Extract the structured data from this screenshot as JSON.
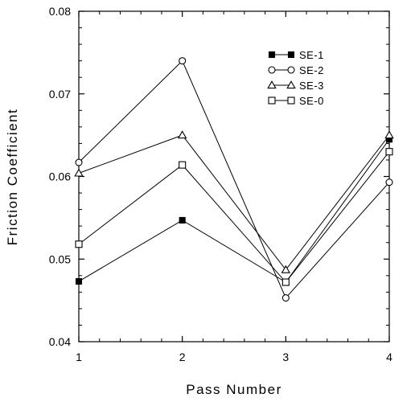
{
  "chart_data": {
    "type": "line",
    "title": "",
    "xlabel": "Pass Number",
    "ylabel": "Friction Coefficient",
    "x": [
      1,
      2,
      3,
      4
    ],
    "xlim": [
      1,
      4
    ],
    "ylim": [
      0.04,
      0.08
    ],
    "xticks": [
      "1",
      "2",
      "3",
      "4"
    ],
    "yticks": [
      "0.04",
      "0.05",
      "0.06",
      "0.07",
      "0.08"
    ],
    "grid": false,
    "legend_position": "top-right",
    "series": [
      {
        "name": "SE-1",
        "marker": "filled-square",
        "values": [
          0.0473,
          0.0547,
          0.0472,
          0.0645
        ]
      },
      {
        "name": "SE-2",
        "marker": "open-circle",
        "values": [
          0.0617,
          0.074,
          0.0453,
          0.0593
        ]
      },
      {
        "name": "SE-3",
        "marker": "open-triangle",
        "values": [
          0.0604,
          0.065,
          0.0487,
          0.065
        ]
      },
      {
        "name": "SE-0",
        "marker": "open-square",
        "values": [
          0.0518,
          0.0614,
          0.0472,
          0.063
        ]
      }
    ]
  }
}
